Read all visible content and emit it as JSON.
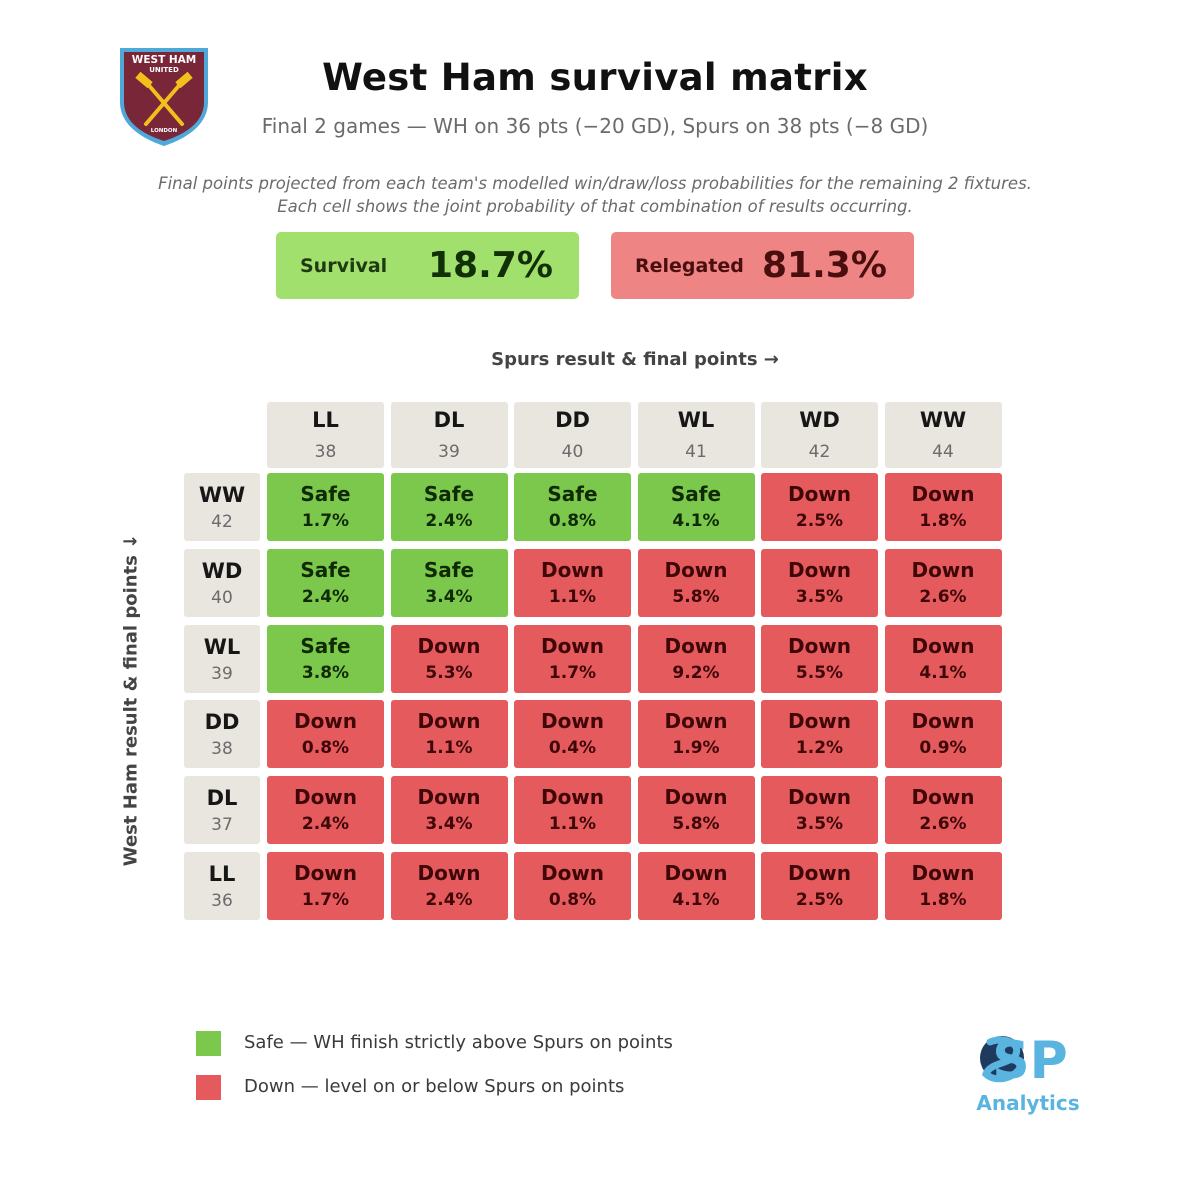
{
  "header": {
    "crest_name": "West Ham United crest",
    "crest_text": {
      "top": "WEST HAM",
      "middle": "UNITED",
      "bottom": "LONDON"
    },
    "title": "West Ham survival matrix",
    "subtitle": "Final 2 games — WH on 36 pts (−20 GD), Spurs on 38 pts (−8 GD)",
    "description_line1": "Final points projected from each team's modelled win/draw/loss probabilities for the remaining 2 fixtures.",
    "description_line2": "Each cell shows the joint probability of that combination of results occurring."
  },
  "summary": {
    "survival_label": "Survival",
    "survival_value": "18.7%",
    "relegated_label": "Relegated",
    "relegated_value": "81.3%"
  },
  "colors": {
    "safe": "#7bc84d",
    "down": "#e45a5d",
    "survival_box": "#a2e06e",
    "relegated_box": "#ef8484",
    "header_cell": "#e9e5df"
  },
  "chart_data": {
    "type": "heatmap",
    "title": "West Ham survival matrix",
    "xlabel": "Spurs result & final points →",
    "ylabel": "West Ham result & final points ↓",
    "columns": [
      {
        "code": "LL",
        "points": "38"
      },
      {
        "code": "DL",
        "points": "39"
      },
      {
        "code": "DD",
        "points": "40"
      },
      {
        "code": "WL",
        "points": "41"
      },
      {
        "code": "WD",
        "points": "42"
      },
      {
        "code": "WW",
        "points": "44"
      }
    ],
    "rows": [
      {
        "code": "WW",
        "points": "42",
        "cells": [
          {
            "verdict": "Safe",
            "prob": "1.7%"
          },
          {
            "verdict": "Safe",
            "prob": "2.4%"
          },
          {
            "verdict": "Safe",
            "prob": "0.8%"
          },
          {
            "verdict": "Safe",
            "prob": "4.1%"
          },
          {
            "verdict": "Down",
            "prob": "2.5%"
          },
          {
            "verdict": "Down",
            "prob": "1.8%"
          }
        ]
      },
      {
        "code": "WD",
        "points": "40",
        "cells": [
          {
            "verdict": "Safe",
            "prob": "2.4%"
          },
          {
            "verdict": "Safe",
            "prob": "3.4%"
          },
          {
            "verdict": "Down",
            "prob": "1.1%"
          },
          {
            "verdict": "Down",
            "prob": "5.8%"
          },
          {
            "verdict": "Down",
            "prob": "3.5%"
          },
          {
            "verdict": "Down",
            "prob": "2.6%"
          }
        ]
      },
      {
        "code": "WL",
        "points": "39",
        "cells": [
          {
            "verdict": "Safe",
            "prob": "3.8%"
          },
          {
            "verdict": "Down",
            "prob": "5.3%"
          },
          {
            "verdict": "Down",
            "prob": "1.7%"
          },
          {
            "verdict": "Down",
            "prob": "9.2%"
          },
          {
            "verdict": "Down",
            "prob": "5.5%"
          },
          {
            "verdict": "Down",
            "prob": "4.1%"
          }
        ]
      },
      {
        "code": "DD",
        "points": "38",
        "cells": [
          {
            "verdict": "Down",
            "prob": "0.8%"
          },
          {
            "verdict": "Down",
            "prob": "1.1%"
          },
          {
            "verdict": "Down",
            "prob": "0.4%"
          },
          {
            "verdict": "Down",
            "prob": "1.9%"
          },
          {
            "verdict": "Down",
            "prob": "1.2%"
          },
          {
            "verdict": "Down",
            "prob": "0.9%"
          }
        ]
      },
      {
        "code": "DL",
        "points": "37",
        "cells": [
          {
            "verdict": "Down",
            "prob": "2.4%"
          },
          {
            "verdict": "Down",
            "prob": "3.4%"
          },
          {
            "verdict": "Down",
            "prob": "1.1%"
          },
          {
            "verdict": "Down",
            "prob": "5.8%"
          },
          {
            "verdict": "Down",
            "prob": "3.5%"
          },
          {
            "verdict": "Down",
            "prob": "2.6%"
          }
        ]
      },
      {
        "code": "LL",
        "points": "36",
        "cells": [
          {
            "verdict": "Down",
            "prob": "1.7%"
          },
          {
            "verdict": "Down",
            "prob": "2.4%"
          },
          {
            "verdict": "Down",
            "prob": "0.8%"
          },
          {
            "verdict": "Down",
            "prob": "4.1%"
          },
          {
            "verdict": "Down",
            "prob": "2.5%"
          },
          {
            "verdict": "Down",
            "prob": "1.8%"
          }
        ]
      }
    ]
  },
  "legend": {
    "safe_text": "Safe — WH finish strictly above Spurs on points",
    "down_text": "Down — level on or below Spurs on points"
  },
  "branding": {
    "logo_letters": "SP",
    "logo_text": "Analytics"
  }
}
